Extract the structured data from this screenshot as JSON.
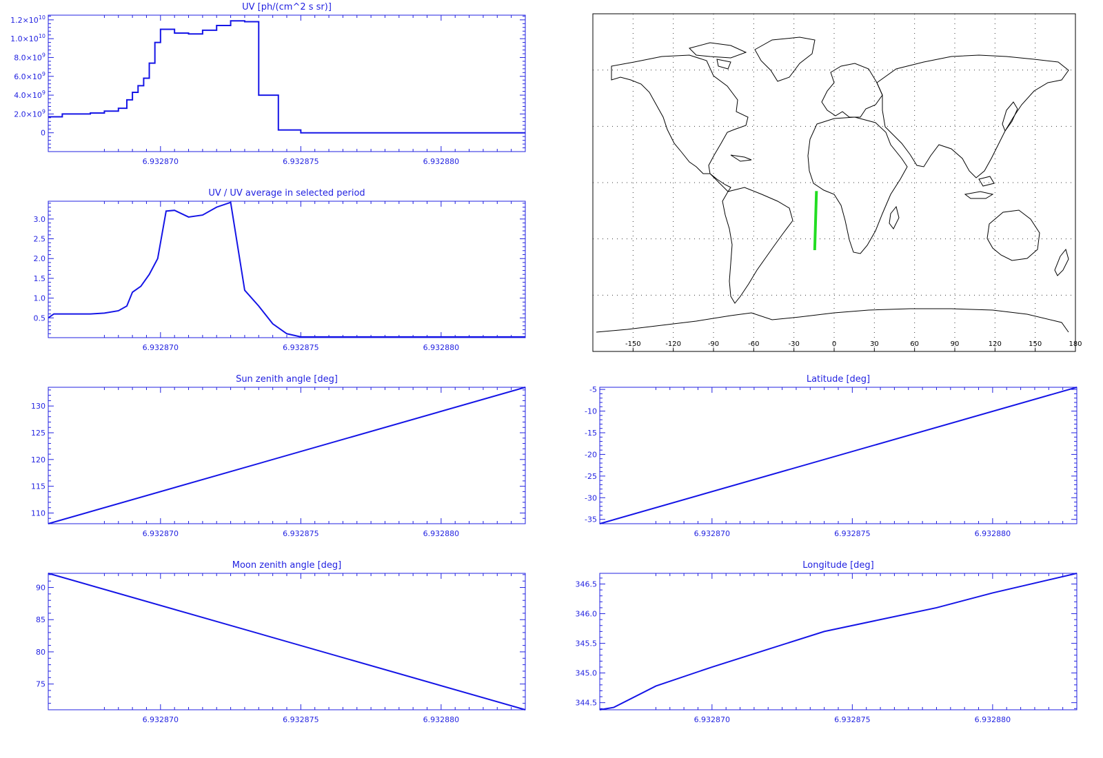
{
  "colors": {
    "axis": "#1f1fe0",
    "series": "#1414e6",
    "track": "#22dd22",
    "coast": "#000000"
  },
  "chart_data": [
    {
      "id": "uv",
      "type": "line",
      "step": true,
      "title": "UV [ph/(cm^2 s sr)]",
      "xlim": [
        6.932866,
        6.932883
      ],
      "xticks": [
        6.93287,
        6.932875,
        6.93288
      ],
      "xtick_labels": [
        "6.932870",
        "6.932875",
        "6.932880"
      ],
      "ylim": [
        -2000000000.0,
        12500000000.0
      ],
      "yticks": [
        0,
        2000000000.0,
        4000000000.0,
        6000000000.0,
        8000000000.0,
        10000000000.0,
        12000000000.0
      ],
      "ytick_labels": [
        {
          "mant": "0",
          "exp": ""
        },
        {
          "mant": "2.0×10",
          "exp": "9"
        },
        {
          "mant": "4.0×10",
          "exp": "9"
        },
        {
          "mant": "6.0×10",
          "exp": "9"
        },
        {
          "mant": "8.0×10",
          "exp": "9"
        },
        {
          "mant": "1.0×10",
          "exp": "10"
        },
        {
          "mant": "1.2×10",
          "exp": "10"
        }
      ],
      "x": [
        6.932866,
        6.9328665,
        6.932867,
        6.9328675,
        6.932868,
        6.9328685,
        6.9328688,
        6.932869,
        6.9328692,
        6.9328694,
        6.9328696,
        6.9328698,
        6.93287,
        6.9328702,
        6.9328705,
        6.932871,
        6.9328715,
        6.932872,
        6.9328725,
        6.932873,
        6.9328735,
        6.932874,
        6.9328742,
        6.9328744,
        6.9328748,
        6.932875,
        6.932876,
        6.932878,
        6.93288,
        6.932882,
        6.932883
      ],
      "y": [
        1700000000.0,
        2000000000.0,
        2000000000.0,
        2100000000.0,
        2300000000.0,
        2600000000.0,
        3500000000.0,
        4300000000.0,
        5000000000.0,
        5800000000.0,
        7400000000.0,
        9600000000.0,
        11000000000.0,
        11000000000.0,
        10600000000.0,
        10500000000.0,
        10900000000.0,
        11400000000.0,
        11900000000.0,
        11800000000.0,
        4000000000.0,
        4000000000.0,
        300000000.0,
        300000000.0,
        300000000.0,
        0,
        0,
        0,
        0,
        0,
        0
      ]
    },
    {
      "id": "uv-ratio",
      "type": "line",
      "title": "UV / UV average in selected period",
      "xlim": [
        6.932866,
        6.932883
      ],
      "xticks": [
        6.93287,
        6.932875,
        6.93288
      ],
      "xtick_labels": [
        "6.932870",
        "6.932875",
        "6.932880"
      ],
      "ylim": [
        0,
        3.45
      ],
      "yticks": [
        0.5,
        1.0,
        1.5,
        2.0,
        2.5,
        3.0
      ],
      "ytick_labels": [
        "0.5",
        "1.0",
        "1.5",
        "2.0",
        "2.5",
        "3.0"
      ],
      "x": [
        6.932866,
        6.9328662,
        6.9328665,
        6.932867,
        6.9328675,
        6.932868,
        6.9328685,
        6.9328688,
        6.932869,
        6.9328693,
        6.9328696,
        6.9328699,
        6.9328702,
        6.9328705,
        6.932871,
        6.9328715,
        6.932872,
        6.9328725,
        6.932873,
        6.9328735,
        6.932874,
        6.9328745,
        6.932875,
        6.932876,
        6.932878,
        6.93288,
        6.932883
      ],
      "y": [
        0.5,
        0.6,
        0.6,
        0.6,
        0.6,
        0.62,
        0.68,
        0.8,
        1.15,
        1.3,
        1.6,
        2.0,
        3.2,
        3.22,
        3.05,
        3.1,
        3.3,
        3.42,
        1.2,
        0.8,
        0.35,
        0.1,
        0.02,
        0.02,
        0.02,
        0.02,
        0.02
      ]
    },
    {
      "id": "sun-zenith",
      "type": "line",
      "title": "Sun zenith angle [deg]",
      "xlim": [
        6.932866,
        6.932883
      ],
      "xticks": [
        6.93287,
        6.932875,
        6.93288
      ],
      "xtick_labels": [
        "6.932870",
        "6.932875",
        "6.932880"
      ],
      "ylim": [
        108,
        133.5
      ],
      "yticks": [
        110,
        115,
        120,
        125,
        130
      ],
      "ytick_labels": [
        "110",
        "115",
        "120",
        "125",
        "130"
      ],
      "x": [
        6.932866,
        6.932883
      ],
      "y": [
        108,
        133.5
      ]
    },
    {
      "id": "moon-zenith",
      "type": "line",
      "title": "Moon zenith angle [deg]",
      "xlim": [
        6.932866,
        6.932883
      ],
      "xticks": [
        6.93287,
        6.932875,
        6.93288
      ],
      "xtick_labels": [
        "6.932870",
        "6.932875",
        "6.932880"
      ],
      "ylim": [
        71,
        92.2
      ],
      "yticks": [
        75,
        80,
        85,
        90
      ],
      "ytick_labels": [
        "75",
        "80",
        "85",
        "90"
      ],
      "x": [
        6.932866,
        6.932883
      ],
      "y": [
        92.2,
        71
      ]
    },
    {
      "id": "latitude",
      "type": "line",
      "title": "Latitude [deg]",
      "xlim": [
        6.932866,
        6.932883
      ],
      "xticks": [
        6.93287,
        6.932875,
        6.93288
      ],
      "xtick_labels": [
        "6.932870",
        "6.932875",
        "6.932880"
      ],
      "ylim": [
        -36,
        -4.5
      ],
      "yticks": [
        -35,
        -30,
        -25,
        -20,
        -15,
        -10,
        -5
      ],
      "ytick_labels": [
        "-35",
        "-30",
        "-25",
        "-20",
        "-15",
        "-10",
        "-5"
      ],
      "x": [
        6.932866,
        6.932883
      ],
      "y": [
        -36,
        -4.5
      ]
    },
    {
      "id": "longitude",
      "type": "line",
      "title": "Longitude [deg]",
      "xlim": [
        6.932866,
        6.932883
      ],
      "xticks": [
        6.93287,
        6.932875,
        6.93288
      ],
      "xtick_labels": [
        "6.932870",
        "6.932875",
        "6.932880"
      ],
      "ylim": [
        344.38,
        346.68
      ],
      "yticks": [
        344.5,
        345.0,
        345.5,
        346.0,
        346.5
      ],
      "ytick_labels": [
        "344.5",
        "345.0",
        "345.5",
        "346.0",
        "346.5"
      ],
      "x": [
        6.932866,
        6.9328665,
        6.932868,
        6.93287,
        6.932872,
        6.932874,
        6.932876,
        6.932878,
        6.93288,
        6.932883
      ],
      "y": [
        344.38,
        344.42,
        344.78,
        345.1,
        345.4,
        345.7,
        345.9,
        346.1,
        346.35,
        346.68
      ]
    }
  ],
  "map": {
    "lon_ticks": [
      -150,
      -120,
      -90,
      -60,
      -30,
      0,
      30,
      60,
      90,
      120,
      150,
      180
    ],
    "lon_tick_labels": [
      "-150",
      "-120",
      "-90",
      "-60",
      "-30",
      "0",
      "30",
      "60",
      "90",
      "120",
      "150",
      "180"
    ],
    "lon_grid": [
      -150,
      -120,
      -90,
      -60,
      -30,
      0,
      30,
      60,
      90,
      120,
      150
    ],
    "lat_grid": [
      -60,
      -30,
      0,
      30,
      60
    ],
    "lon_range": [
      -180,
      180
    ],
    "lat_range": [
      -90,
      90
    ],
    "track": [
      [
        -14.5,
        -36
      ],
      [
        -13.2,
        -4.5
      ]
    ]
  }
}
